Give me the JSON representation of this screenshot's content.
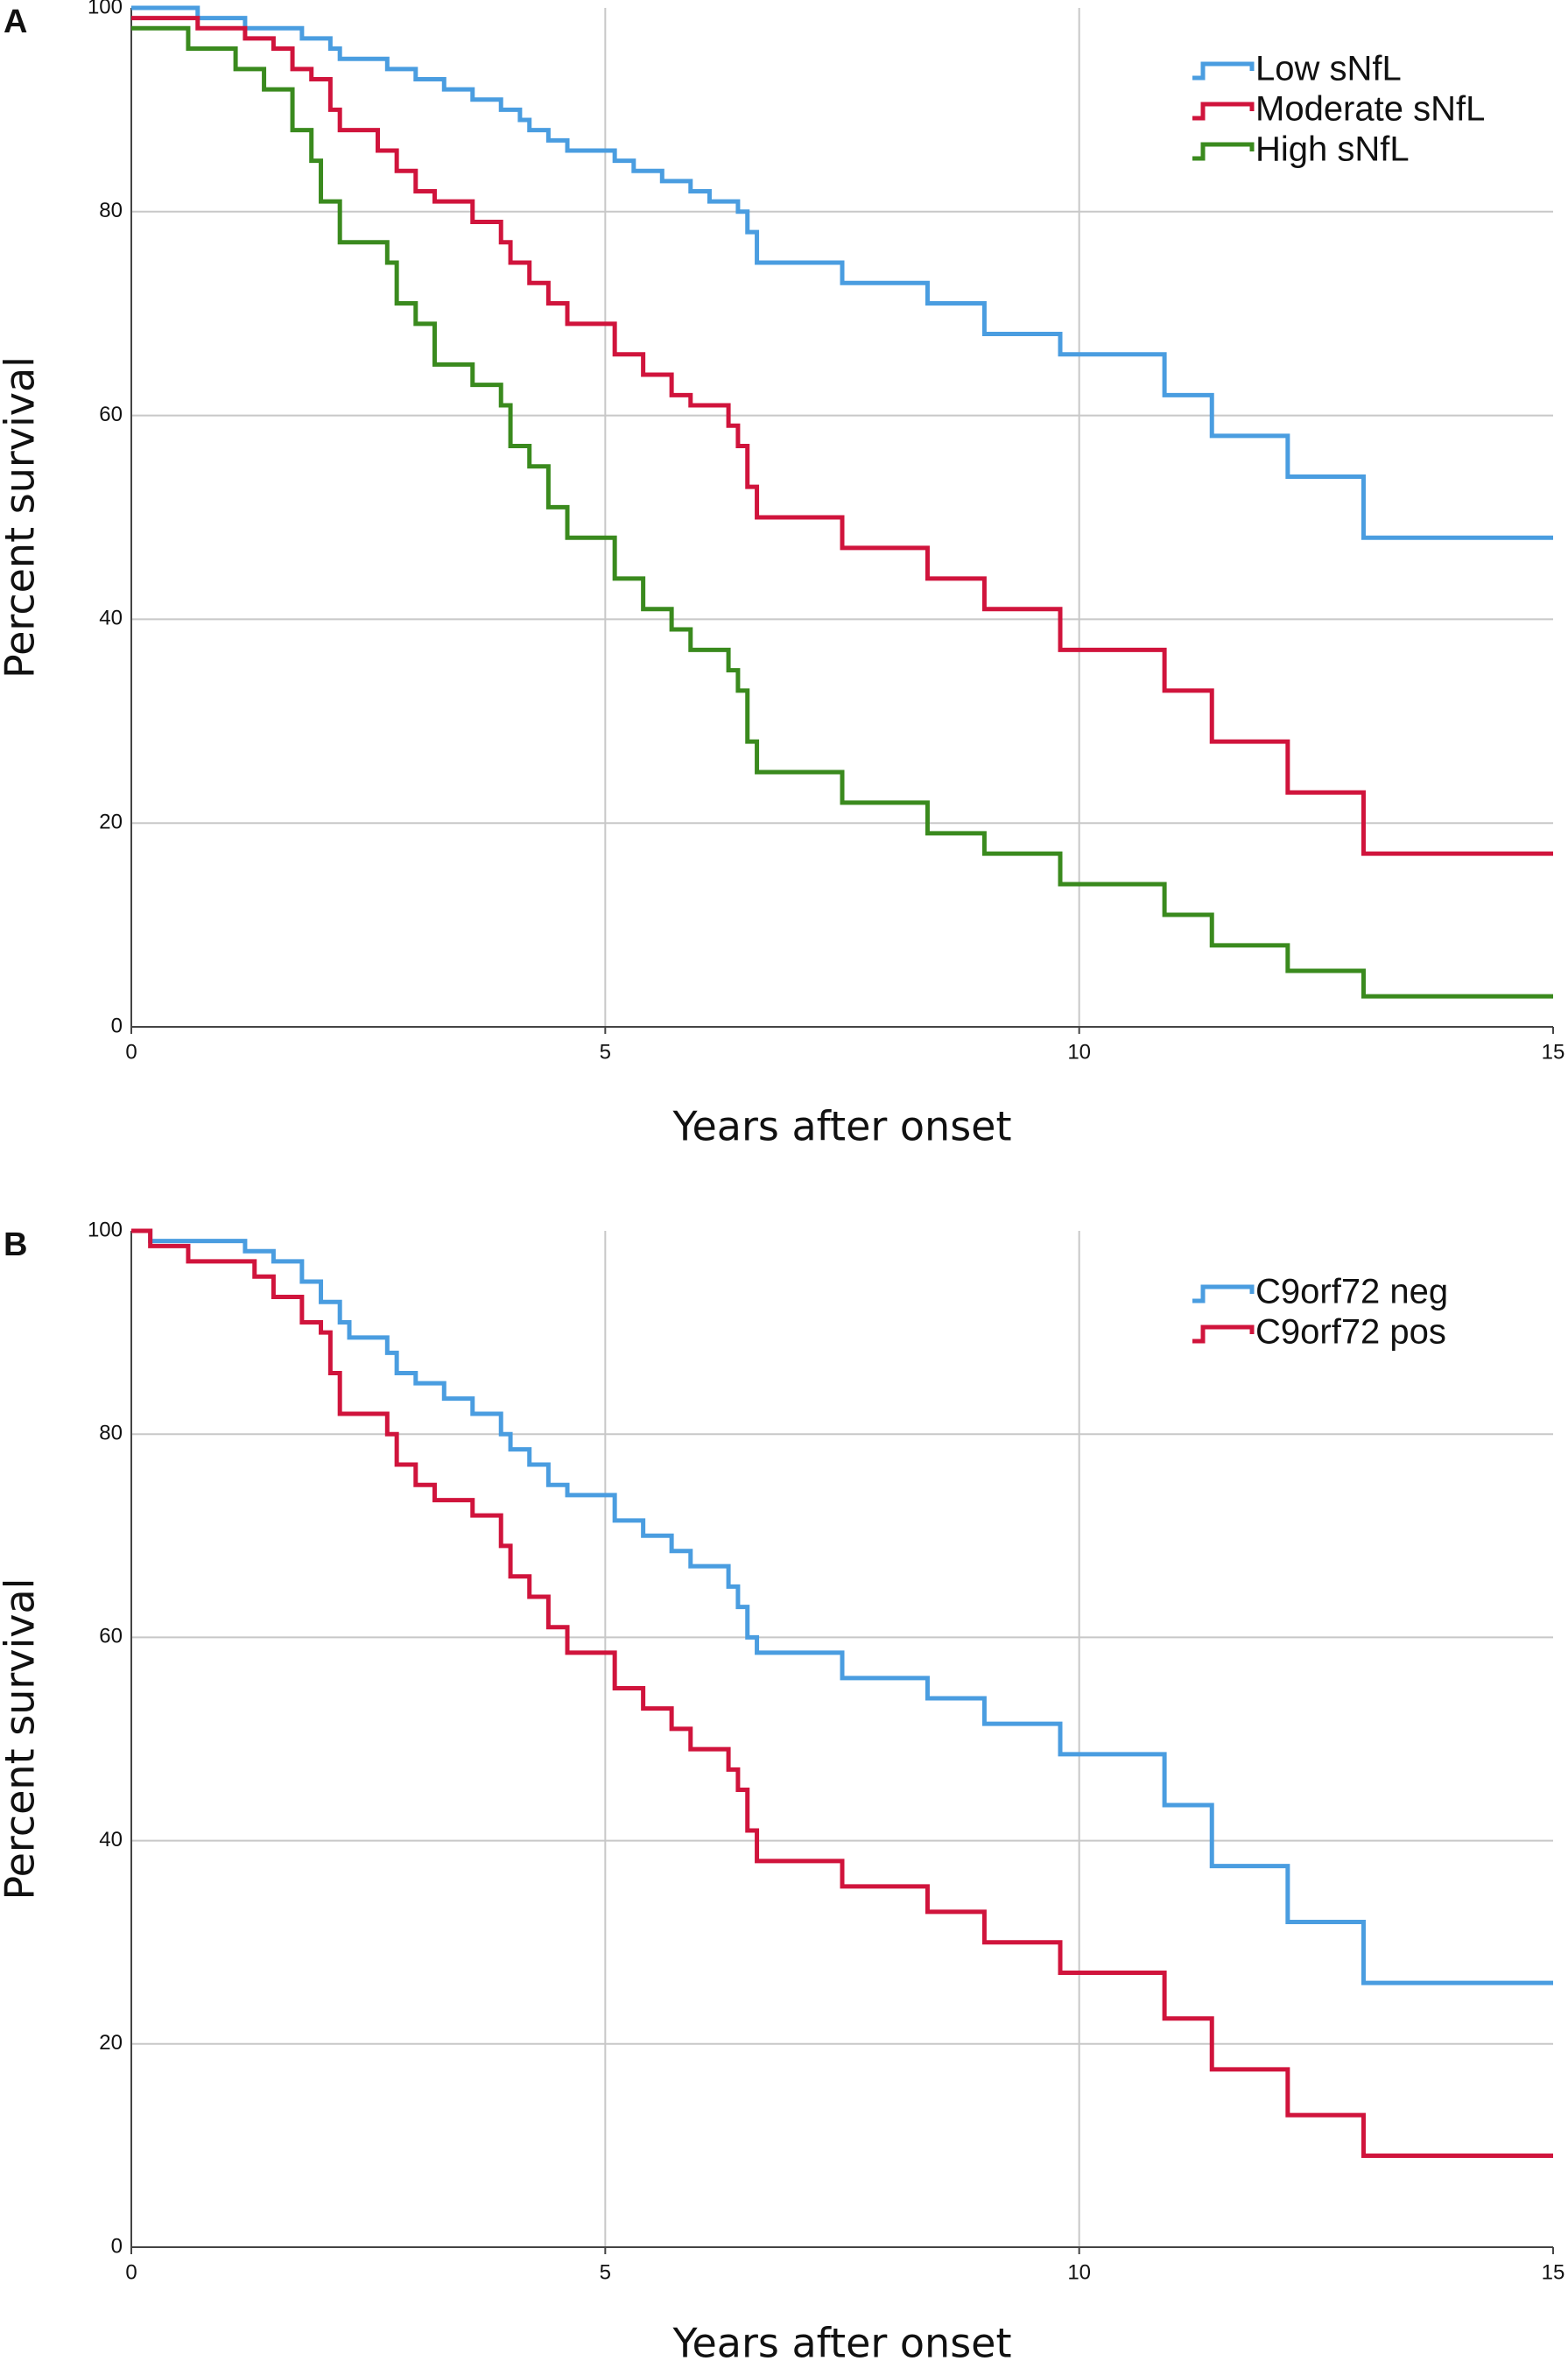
{
  "chart_data": [
    {
      "type": "line",
      "step": true,
      "panel_label": "A",
      "xlabel": "Years after onset",
      "ylabel": "Percent survival",
      "xlim": [
        0,
        15
      ],
      "xticks": [
        0,
        5,
        10,
        15
      ],
      "ylim": [
        0,
        100
      ],
      "yticks": [
        0,
        20,
        40,
        60,
        80,
        100
      ],
      "grid": true,
      "legend": "upper right",
      "series": [
        {
          "name": "Low sNfL",
          "color": "#4a9de0",
          "x": [
            0,
            0.7,
            1.2,
            1.8,
            2.1,
            2.2,
            2.7,
            3.0,
            3.3,
            3.6,
            3.9,
            4.1,
            4.2,
            4.4,
            4.6,
            5.1,
            5.3,
            5.6,
            5.9,
            6.1,
            6.4,
            6.5,
            6.6,
            7.5,
            8.4,
            9.0,
            9.8,
            10.9,
            11.4,
            12.2,
            13.0,
            15
          ],
          "values": [
            100,
            99,
            98,
            97,
            96,
            95,
            94,
            93,
            92,
            91,
            90,
            89,
            88,
            87,
            86,
            85,
            84,
            83,
            82,
            81,
            80,
            78,
            75,
            73,
            71,
            68,
            66,
            62,
            58,
            54,
            48,
            48
          ]
        },
        {
          "name": "Moderate sNfL",
          "color": "#d0143c",
          "x": [
            0,
            0.7,
            1.2,
            1.5,
            1.7,
            1.9,
            2.1,
            2.2,
            2.6,
            2.8,
            3.0,
            3.2,
            3.6,
            3.9,
            4.0,
            4.2,
            4.4,
            4.6,
            5.1,
            5.4,
            5.7,
            5.9,
            6.3,
            6.4,
            6.5,
            6.6,
            7.5,
            8.4,
            9.0,
            9.8,
            10.9,
            11.4,
            12.2,
            13.0,
            15
          ],
          "values": [
            99,
            98,
            97,
            96,
            94,
            93,
            90,
            88,
            86,
            84,
            82,
            81,
            79,
            77,
            75,
            73,
            71,
            69,
            66,
            64,
            62,
            61,
            59,
            57,
            53,
            50,
            47,
            44,
            41,
            37,
            33,
            28,
            23,
            17,
            17
          ]
        },
        {
          "name": "High sNfL",
          "color": "#3a8a1e",
          "x": [
            0,
            0.6,
            1.1,
            1.4,
            1.7,
            1.9,
            2.0,
            2.2,
            2.7,
            2.8,
            3.0,
            3.2,
            3.6,
            3.9,
            4.0,
            4.2,
            4.4,
            4.6,
            5.1,
            5.4,
            5.7,
            5.9,
            6.3,
            6.4,
            6.5,
            6.6,
            7.5,
            8.4,
            9.0,
            9.8,
            10.9,
            11.4,
            12.2,
            13.0,
            15
          ],
          "values": [
            98,
            96,
            94,
            92,
            88,
            85,
            81,
            77,
            75,
            71,
            69,
            65,
            63,
            61,
            57,
            55,
            51,
            48,
            44,
            41,
            39,
            37,
            35,
            33,
            28,
            25,
            22,
            19,
            17,
            14,
            11,
            8,
            5.5,
            3,
            3
          ]
        }
      ]
    },
    {
      "type": "line",
      "step": true,
      "panel_label": "B",
      "xlabel": "Years after onset",
      "ylabel": "Percent survival",
      "xlim": [
        0,
        15
      ],
      "xticks": [
        0,
        5,
        10,
        15
      ],
      "ylim": [
        0,
        100
      ],
      "yticks": [
        0,
        20,
        40,
        60,
        80,
        100
      ],
      "grid": true,
      "legend": "upper right",
      "series": [
        {
          "name": "C9orf72 neg",
          "color": "#4a9de0",
          "x": [
            0,
            0.2,
            1.2,
            1.5,
            1.8,
            2.0,
            2.2,
            2.3,
            2.7,
            2.8,
            3.0,
            3.3,
            3.6,
            3.9,
            4.0,
            4.2,
            4.4,
            4.6,
            5.1,
            5.4,
            5.7,
            5.9,
            6.3,
            6.4,
            6.5,
            6.6,
            7.5,
            8.4,
            9.0,
            9.8,
            10.9,
            11.4,
            12.2,
            13.0,
            15
          ],
          "values": [
            100,
            99,
            98,
            97,
            95,
            93,
            91,
            89.5,
            88,
            86,
            85,
            83.5,
            82,
            80,
            78.5,
            77,
            75,
            74,
            71.5,
            70,
            68.5,
            67,
            65,
            63,
            60,
            58.5,
            56,
            54,
            51.5,
            48.5,
            43.5,
            37.5,
            32,
            26,
            26
          ]
        },
        {
          "name": "C9orf72 pos",
          "color": "#d0143c",
          "x": [
            0,
            0.2,
            0.6,
            1.3,
            1.5,
            1.8,
            2.0,
            2.1,
            2.2,
            2.7,
            2.8,
            3.0,
            3.2,
            3.6,
            3.9,
            4.0,
            4.2,
            4.4,
            4.6,
            5.1,
            5.4,
            5.7,
            5.9,
            6.3,
            6.4,
            6.5,
            6.6,
            7.5,
            8.4,
            9.0,
            9.8,
            10.9,
            11.4,
            12.2,
            13.0,
            15
          ],
          "values": [
            100,
            98.5,
            97,
            95.5,
            93.5,
            91,
            90,
            86,
            82,
            80,
            77,
            75,
            73.5,
            72,
            69,
            66,
            64,
            61,
            58.5,
            55,
            53,
            51,
            49,
            47,
            45,
            41,
            38,
            35.5,
            33,
            30,
            27,
            22.5,
            17.5,
            13,
            9,
            9
          ]
        }
      ]
    }
  ]
}
